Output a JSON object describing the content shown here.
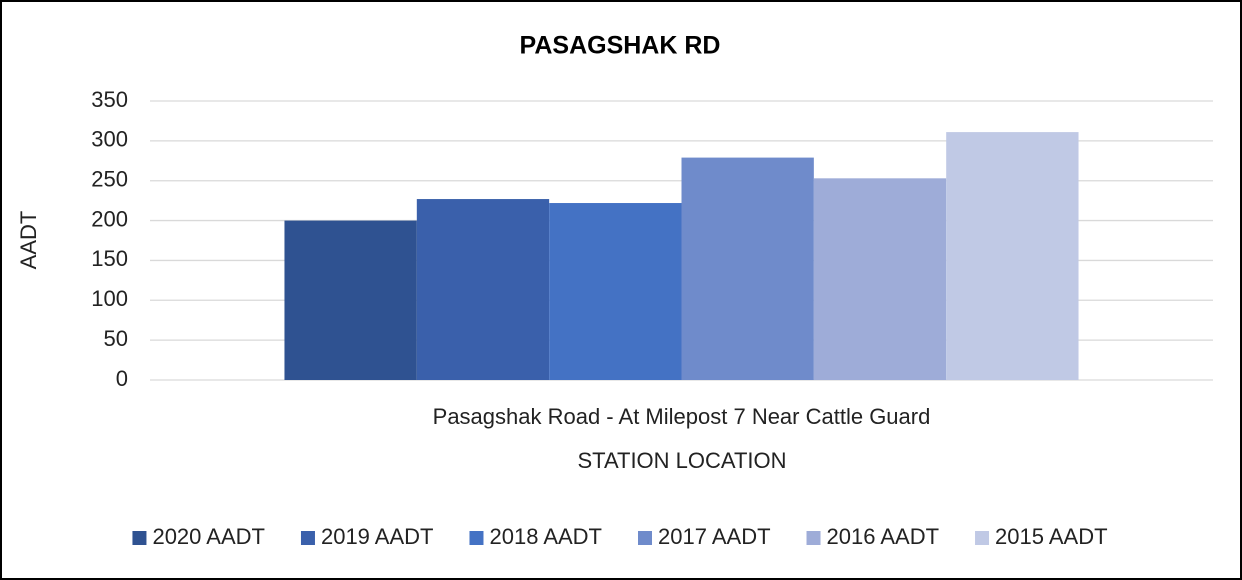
{
  "chart_data": {
    "type": "bar",
    "title": "PASAGSHAK RD",
    "categories": [
      "Pasagshak Road - At Milepost 7 Near Cattle Guard"
    ],
    "x_label": "STATION LOCATION",
    "y_label": "AADT",
    "series": [
      {
        "name": "2020 AADT",
        "color": "#2f5291",
        "values": [
          200
        ]
      },
      {
        "name": "2019 AADT",
        "color": "#3a60ab",
        "values": [
          227
        ]
      },
      {
        "name": "2018 AADT",
        "color": "#4472c4",
        "values": [
          222
        ]
      },
      {
        "name": "2017 AADT",
        "color": "#6f8bcb",
        "values": [
          279
        ]
      },
      {
        "name": "2016 AADT",
        "color": "#9eacd8",
        "values": [
          253
        ]
      },
      {
        "name": "2015 AADT",
        "color": "#c0c9e5",
        "values": [
          311
        ]
      }
    ],
    "ylim": [
      0,
      350
    ],
    "yticks": [
      0,
      50,
      100,
      150,
      200,
      250,
      300,
      350
    ],
    "grid": true,
    "legend": "bottom"
  }
}
